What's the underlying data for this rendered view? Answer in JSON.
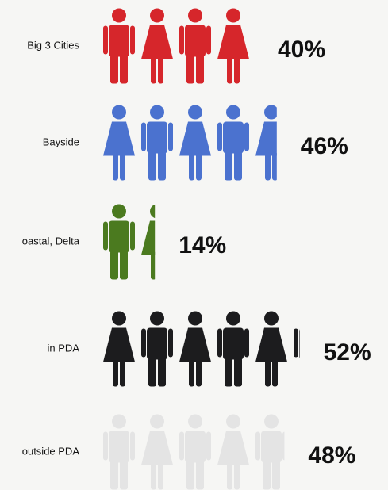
{
  "chart_data": {
    "type": "pictogram",
    "categories": [
      "Big 3 Cities",
      "Bayside",
      "oastal, Delta",
      "in PDA",
      "outside PDA"
    ],
    "values": [
      40,
      46,
      14,
      52,
      48
    ],
    "value_labels": [
      "40%",
      "46%",
      "14%",
      "52%",
      "48%"
    ],
    "colors": [
      "#d6262b",
      "#4b72cf",
      "#4b7a1f",
      "#1c1c1e",
      "#e4e4e4"
    ]
  }
}
